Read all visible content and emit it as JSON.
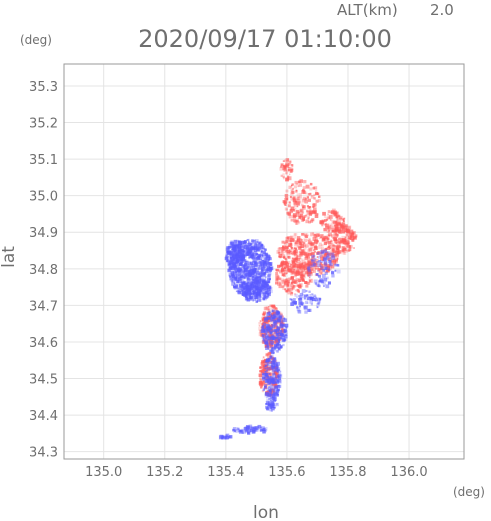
{
  "header": {
    "altitude_label": "ALT(km)",
    "altitude_value": "2.0",
    "timestamp": "2020/09/17 01:10:00"
  },
  "axes": {
    "x_label": "lon",
    "y_label": "lat",
    "x_unit": "(deg)",
    "y_unit": "(deg)",
    "x_range": [
      134.87,
      136.18
    ],
    "y_range": [
      34.28,
      35.36
    ],
    "x_ticks": [
      "135.0",
      "135.2",
      "135.4",
      "135.6",
      "135.8",
      "136.0"
    ],
    "y_ticks": [
      "34.3",
      "34.4",
      "34.5",
      "34.6",
      "34.7",
      "34.8",
      "34.9",
      "35.0",
      "35.1",
      "35.2",
      "35.3"
    ],
    "grid": true
  },
  "colors": {
    "positive": "#ff5a5a",
    "negative": "#5a5aff",
    "axis_text": "#6f6f6f",
    "frame": "#9a9a9a"
  },
  "radar": {
    "clusters": [
      {
        "tone": "negative",
        "lon": 135.48,
        "lat": 34.8,
        "rlon": 0.07,
        "rlat": 0.08,
        "count": 700
      },
      {
        "tone": "negative",
        "lon": 135.43,
        "lat": 34.84,
        "rlon": 0.03,
        "rlat": 0.04,
        "count": 180
      },
      {
        "tone": "negative",
        "lon": 135.5,
        "lat": 34.74,
        "rlon": 0.05,
        "rlat": 0.03,
        "count": 200
      },
      {
        "tone": "positive",
        "lon": 135.67,
        "lat": 34.84,
        "rlon": 0.1,
        "rlat": 0.06,
        "count": 400
      },
      {
        "tone": "positive",
        "lon": 135.78,
        "lat": 34.88,
        "rlon": 0.05,
        "rlat": 0.04,
        "count": 160
      },
      {
        "tone": "positive",
        "lon": 135.65,
        "lat": 34.98,
        "rlon": 0.06,
        "rlat": 0.06,
        "count": 180
      },
      {
        "tone": "positive",
        "lon": 135.6,
        "lat": 35.07,
        "rlon": 0.02,
        "rlat": 0.03,
        "count": 50
      },
      {
        "tone": "positive",
        "lon": 135.75,
        "lat": 34.93,
        "rlon": 0.04,
        "rlat": 0.03,
        "count": 90
      },
      {
        "tone": "positive",
        "lon": 135.55,
        "lat": 34.64,
        "rlon": 0.04,
        "rlat": 0.06,
        "count": 260
      },
      {
        "tone": "negative",
        "lon": 135.56,
        "lat": 34.63,
        "rlon": 0.04,
        "rlat": 0.06,
        "count": 240
      },
      {
        "tone": "positive",
        "lon": 135.54,
        "lat": 34.51,
        "rlon": 0.03,
        "rlat": 0.06,
        "count": 180
      },
      {
        "tone": "negative",
        "lon": 135.55,
        "lat": 34.5,
        "rlon": 0.03,
        "rlat": 0.06,
        "count": 180
      },
      {
        "tone": "negative",
        "lon": 135.55,
        "lat": 34.43,
        "rlon": 0.02,
        "rlat": 0.02,
        "count": 40
      },
      {
        "tone": "negative",
        "lon": 135.48,
        "lat": 34.36,
        "rlon": 0.06,
        "rlat": 0.01,
        "count": 60
      },
      {
        "tone": "negative",
        "lon": 135.4,
        "lat": 34.34,
        "rlon": 0.02,
        "rlat": 0.005,
        "count": 20
      },
      {
        "tone": "positive",
        "lon": 135.62,
        "lat": 34.78,
        "rlon": 0.06,
        "rlat": 0.05,
        "count": 200
      },
      {
        "tone": "negative",
        "lon": 135.72,
        "lat": 34.8,
        "rlon": 0.05,
        "rlat": 0.05,
        "count": 80
      },
      {
        "tone": "negative",
        "lon": 135.66,
        "lat": 34.71,
        "rlon": 0.05,
        "rlat": 0.03,
        "count": 70
      }
    ]
  }
}
